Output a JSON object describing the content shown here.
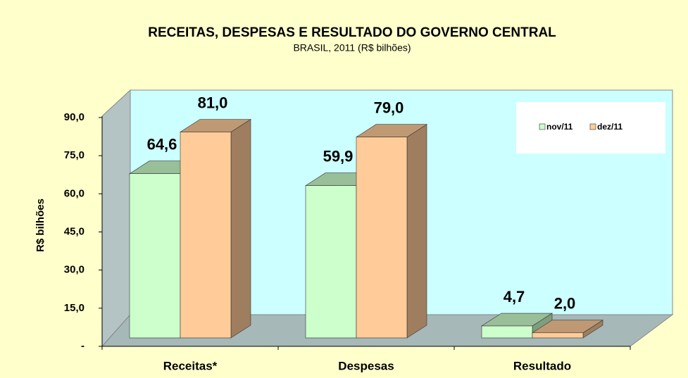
{
  "chart_data": {
    "type": "bar3d",
    "title": "RECEITAS, DESPESAS E RESULTADO DO GOVERNO CENTRAL",
    "subtitle": "BRASIL, 2011 (R$ bilhões)",
    "y_label": "R$ bilhões",
    "categories": [
      "Receitas*",
      "Despesas",
      "Resultado"
    ],
    "series": [
      {
        "name": "nov/11",
        "color": "#ccffcc",
        "values": [
          64.6,
          59.9,
          4.7
        ],
        "value_labels": [
          "64,6",
          "59,9",
          "4,7"
        ]
      },
      {
        "name": "dez/11",
        "color": "#ffcc99",
        "values": [
          81.0,
          79.0,
          2.0
        ],
        "value_labels": [
          "81,0",
          "79,0",
          "2,0"
        ]
      }
    ],
    "ylim": [
      0,
      90
    ],
    "yticks": [
      {
        "value": 0,
        "label": "-"
      },
      {
        "value": 15,
        "label": "15,0"
      },
      {
        "value": 30,
        "label": "30,0"
      },
      {
        "value": 45,
        "label": "45,0"
      },
      {
        "value": 60,
        "label": "60,0"
      },
      {
        "value": 75,
        "label": "75,0"
      },
      {
        "value": 90,
        "label": "90,0"
      }
    ],
    "legend": "top-right"
  }
}
